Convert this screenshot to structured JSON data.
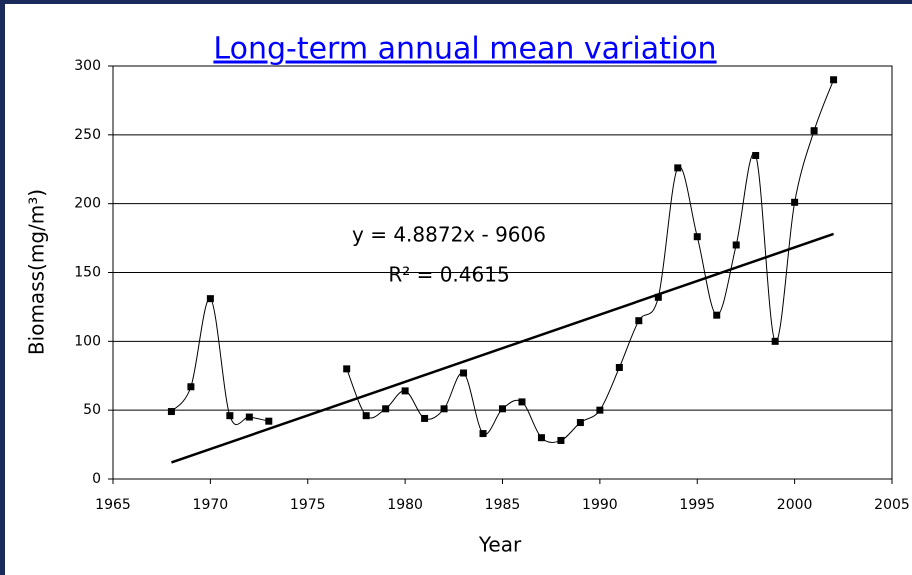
{
  "chart_data": {
    "type": "line",
    "title": "Long-term annual mean variation",
    "x_label": "Year",
    "y_label": "Biomass(mg/m³)",
    "annotations": [
      "y = 4.8872x - 9606",
      "R² = 0.4615"
    ],
    "series": [
      {
        "name": "Biomass",
        "color": "#000000",
        "marker": "square",
        "x": [
          1968,
          1969,
          1970,
          1971,
          1972,
          1973,
          1974,
          1975,
          1976,
          1977,
          1978,
          1979,
          1980,
          1981,
          1982,
          1983,
          1984,
          1985,
          1986,
          1987,
          1988,
          1989,
          1990,
          1991,
          1992,
          1993,
          1994,
          1995,
          1996,
          1997,
          1998,
          1999,
          2000,
          2001,
          2002
        ],
        "values": [
          49,
          67,
          131,
          46,
          45,
          42,
          null,
          null,
          null,
          80,
          46,
          51,
          64,
          44,
          51,
          77,
          33,
          51,
          56,
          30,
          28,
          41,
          50,
          81,
          115,
          132,
          226,
          176,
          119,
          170,
          235,
          100,
          201,
          253,
          290
        ]
      },
      {
        "name": "Trend",
        "color": "#000000",
        "marker": "none",
        "x": [
          1968,
          2002
        ],
        "values": [
          12,
          178
        ]
      }
    ],
    "xlim": [
      1965,
      2005
    ],
    "xticks": [
      1965,
      1970,
      1975,
      1980,
      1985,
      1990,
      1995,
      2000,
      2005
    ],
    "ylim": [
      0,
      300
    ],
    "yticks": [
      0,
      50,
      100,
      150,
      200,
      250,
      300
    ],
    "grid": true
  }
}
